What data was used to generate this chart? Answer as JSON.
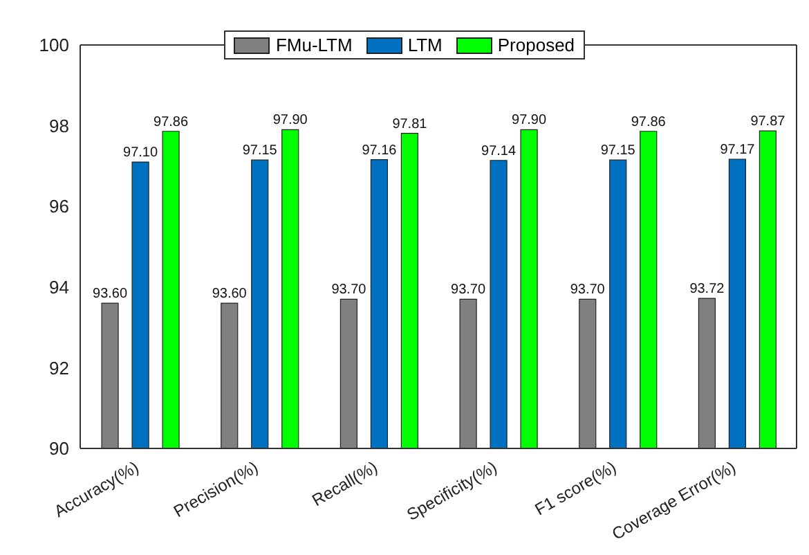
{
  "chart_data": {
    "type": "bar",
    "categories": [
      "Accuracy(%)",
      "Precision(%)",
      "Recall(%)",
      "Specificity(%)",
      "F1 score(%)",
      "Coverage Error(%)"
    ],
    "series": [
      {
        "name": "FMu-LTM",
        "color": "#808080",
        "values": [
          93.6,
          93.6,
          93.7,
          93.7,
          93.7,
          93.72
        ],
        "value_labels": [
          "93.60",
          "93.60",
          "93.70",
          "93.70",
          "93.70",
          "93.72"
        ]
      },
      {
        "name": "LTM",
        "color": "#0070c0",
        "values": [
          97.1,
          97.15,
          97.16,
          97.14,
          97.15,
          97.17
        ],
        "value_labels": [
          "97.10",
          "97.15",
          "97.16",
          "97.14",
          "97.15",
          "97.17"
        ]
      },
      {
        "name": "Proposed",
        "color": "#00ff00",
        "values": [
          97.86,
          97.9,
          97.81,
          97.9,
          97.86,
          97.87
        ],
        "value_labels": [
          "97.86",
          "97.90",
          "97.81",
          "97.90",
          "97.86",
          "97.87"
        ]
      }
    ],
    "ylim": [
      90,
      100
    ],
    "yticks": [
      90,
      92,
      94,
      96,
      98,
      100
    ],
    "grid": false,
    "legend": "top"
  }
}
